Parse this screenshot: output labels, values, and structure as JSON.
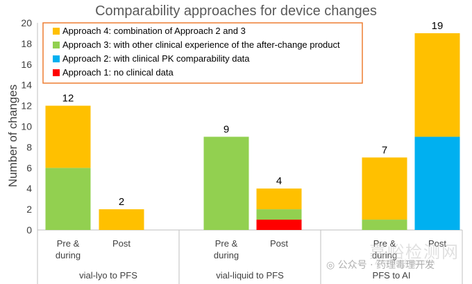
{
  "chart_data": {
    "type": "stacked-bar",
    "title": "Comparability approaches for device changes",
    "ylabel": "Number of changes",
    "xlabel": "",
    "ylim": [
      0,
      20
    ],
    "yticks": [
      0,
      2,
      4,
      6,
      8,
      10,
      12,
      14,
      16,
      18,
      20
    ],
    "groups": [
      {
        "label": "vial-lyo to PFS",
        "bars": [
          {
            "label": [
              "Pre &",
              "during"
            ],
            "total": 12,
            "values": {
              "a1": 0,
              "a2": 0,
              "a3": 6,
              "a4": 6
            }
          },
          {
            "label": [
              "Post"
            ],
            "total": 2,
            "values": {
              "a1": 0,
              "a2": 0,
              "a3": 0,
              "a4": 2
            }
          }
        ]
      },
      {
        "label": "vial-liquid to PFS",
        "bars": [
          {
            "label": [
              "Pre &",
              "during"
            ],
            "total": 9,
            "values": {
              "a1": 0,
              "a2": 0,
              "a3": 9,
              "a4": 0
            }
          },
          {
            "label": [
              "Post"
            ],
            "total": 4,
            "values": {
              "a1": 1,
              "a2": 0,
              "a3": 1,
              "a4": 2
            }
          }
        ]
      },
      {
        "label": "PFS to AI",
        "bars": [
          {
            "label": [
              "Pre &",
              "during"
            ],
            "total": 7,
            "values": {
              "a1": 0,
              "a2": 0,
              "a3": 1,
              "a4": 6
            }
          },
          {
            "label": [
              "Post"
            ],
            "total": 19,
            "values": {
              "a1": 0,
              "a2": 9,
              "a3": 0,
              "a4": 10
            }
          }
        ]
      }
    ],
    "series_order": [
      "a1",
      "a2",
      "a3",
      "a4"
    ],
    "series": [
      {
        "key": "a4",
        "name": "Approach 4: combination of Approach 2 and 3",
        "color": "#FFC000"
      },
      {
        "key": "a3",
        "name": "Approach 3: with other clinical experience of the after-change product",
        "color": "#92D050"
      },
      {
        "key": "a2",
        "name": "Approach 2: with clinical PK comparability data",
        "color": "#00B0F0"
      },
      {
        "key": "a1",
        "name": "Approach 1: no clinical data",
        "color": "#FF0000"
      }
    ],
    "legend_position": "top-left",
    "legend_border_color": "#ED7D31"
  },
  "watermark": {
    "line1": "嘉峪检测网",
    "line2": "AnyTesting.com",
    "wechat": "公众号 · 药理毒理开发"
  }
}
